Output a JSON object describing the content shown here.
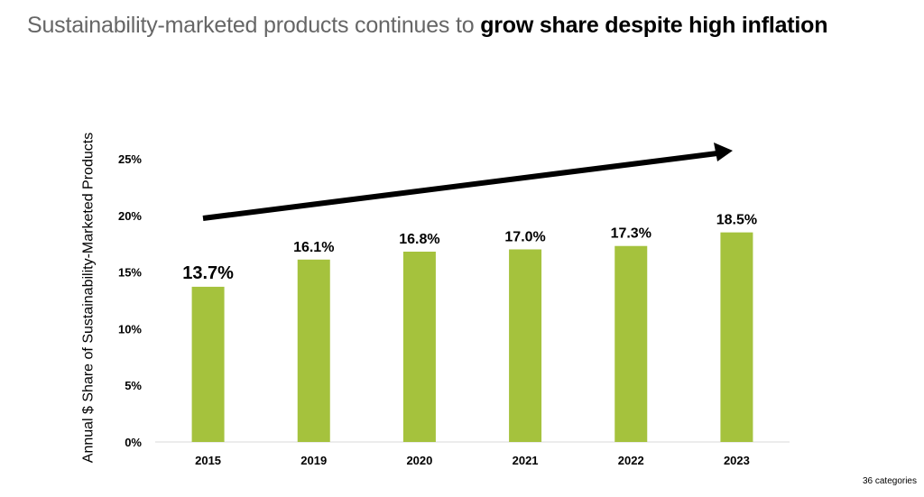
{
  "title": {
    "regular": "Sustainability-marketed products continues to ",
    "bold": "grow share despite high inflation"
  },
  "footnote": "36 categories",
  "chart_data": {
    "type": "bar",
    "categories": [
      "2015",
      "2019",
      "2020",
      "2021",
      "2022",
      "2023"
    ],
    "values": [
      13.7,
      16.1,
      16.8,
      17.0,
      17.3,
      18.5
    ],
    "data_labels": [
      "13.7%",
      "16.1%",
      "16.8%",
      "17.0%",
      "17.3%",
      "18.5%"
    ],
    "title": "",
    "xlabel": "",
    "ylabel": "Annual $ Share of Sustainability-Marketed Products",
    "ylim": [
      0,
      25
    ],
    "yticks": [
      "0%",
      "5%",
      "10%",
      "15%",
      "20%",
      "25%"
    ],
    "grid": false,
    "annotation": "upward trend arrow",
    "bar_color": "#a5c23d"
  }
}
